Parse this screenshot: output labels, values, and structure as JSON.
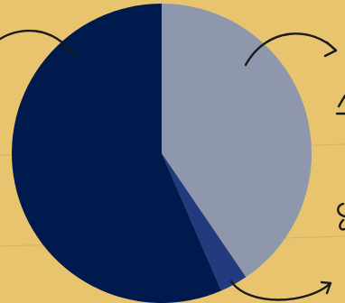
{
  "colors": {
    "background": "#E8C46E",
    "rule_line": "#D9B562",
    "arrow": "#1A1A1A"
  },
  "chart_data": {
    "type": "pie",
    "title": "",
    "legend": "none",
    "start_angle_deg": 0,
    "direction": "clockwise",
    "series": [
      {
        "slices": [
          {
            "value": 40.5,
            "color": "#8E97AB"
          },
          {
            "value": 3.0,
            "color": "#243A7E"
          },
          {
            "value": 56.5,
            "color": "#001A4D"
          }
        ]
      }
    ]
  },
  "annotations": [
    {
      "icon": "curved-arrow-icon",
      "pointing": "left-slice"
    },
    {
      "icon": "curved-arrow-icon",
      "pointing": "right-edge"
    },
    {
      "icon": "curved-arrow-icon",
      "pointing": "bottom-right-edge"
    }
  ]
}
